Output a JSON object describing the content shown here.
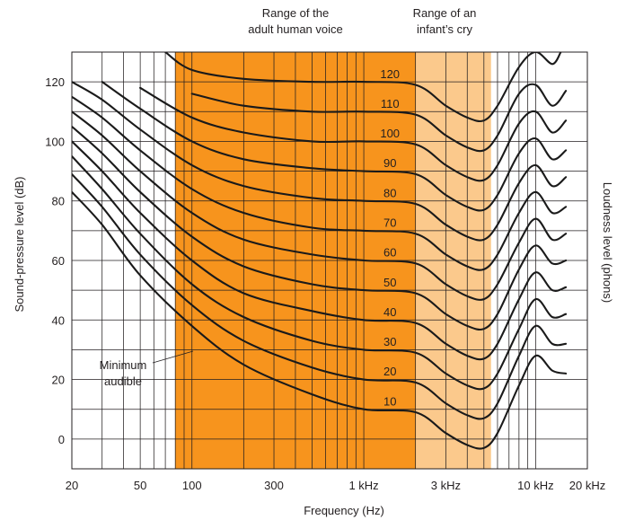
{
  "chart_data": {
    "type": "line",
    "title": "",
    "xlabel": "Frequency (Hz)",
    "ylabel": "Sound-pressure level (dB)",
    "y2label": "Loudness level (phons)",
    "x_scale": "log",
    "xlim": [
      20,
      20000
    ],
    "ylim": [
      -10,
      130
    ],
    "grid": true,
    "x_ticks": [
      {
        "value": 20,
        "label": "20"
      },
      {
        "value": 50,
        "label": "50"
      },
      {
        "value": 100,
        "label": "100"
      },
      {
        "value": 300,
        "label": "300"
      },
      {
        "value": 1000,
        "label": "1 kHz"
      },
      {
        "value": 3000,
        "label": "3 kHz"
      },
      {
        "value": 10000,
        "label": "10 kHz"
      },
      {
        "value": 20000,
        "label": "20 kHz"
      }
    ],
    "y_ticks": [
      0,
      20,
      40,
      60,
      80,
      100,
      120
    ],
    "regions": [
      {
        "name": "Range of the adult human voice",
        "line1": "Range of the",
        "line2": "adult human voice",
        "x_start": 80,
        "x_end": 2000,
        "color": "#f7941d"
      },
      {
        "name": "Range of an infant's cry",
        "line1": "Range of an",
        "line2": "infant’s cry",
        "x_start": 2000,
        "x_end": 5500,
        "color": "#fbc98c"
      }
    ],
    "annotations": [
      {
        "line1": "Minimum",
        "line2": "audible",
        "x": 60,
        "y": 22
      }
    ],
    "phon_labels": [
      "10",
      "20",
      "30",
      "40",
      "50",
      "60",
      "70",
      "80",
      "90",
      "100",
      "110",
      "120"
    ],
    "series": [
      {
        "name": "10",
        "x": [
          20,
          30,
          50,
          100,
          200,
          500,
          1000,
          2000,
          3000,
          4000,
          5000,
          6000,
          8000,
          10000,
          12500,
          15000
        ],
        "y": [
          83,
          72,
          55,
          38,
          25,
          15,
          10,
          9,
          2,
          -2,
          -3,
          2,
          18,
          28,
          23,
          22
        ]
      },
      {
        "name": "20",
        "x": [
          20,
          30,
          50,
          100,
          200,
          500,
          1000,
          2000,
          3000,
          4000,
          5000,
          6000,
          8000,
          10000,
          12500,
          15000
        ],
        "y": [
          89,
          78,
          62,
          45,
          33,
          24,
          20,
          19,
          12,
          8,
          7,
          12,
          28,
          38,
          32,
          32
        ]
      },
      {
        "name": "30",
        "x": [
          20,
          30,
          50,
          100,
          200,
          500,
          1000,
          2000,
          3000,
          4000,
          5000,
          6000,
          8000,
          10000,
          12500,
          15000
        ],
        "y": [
          95,
          84,
          69,
          52,
          41,
          33,
          30,
          29,
          22,
          18,
          17,
          22,
          37,
          47,
          41,
          42
        ]
      },
      {
        "name": "40",
        "x": [
          20,
          30,
          50,
          100,
          200,
          500,
          1000,
          2000,
          3000,
          4000,
          5000,
          6000,
          8000,
          10000,
          12500,
          15000
        ],
        "y": [
          100,
          90,
          76,
          60,
          49,
          43,
          40,
          39,
          32,
          28,
          27,
          32,
          47,
          56,
          50,
          51
        ]
      },
      {
        "name": "50",
        "x": [
          20,
          30,
          50,
          100,
          200,
          500,
          1000,
          2000,
          3000,
          4000,
          5000,
          6000,
          8000,
          10000,
          12500,
          15000
        ],
        "y": [
          105,
          96,
          83,
          68,
          58,
          52,
          50,
          49,
          42,
          38,
          37,
          42,
          57,
          65,
          59,
          60
        ]
      },
      {
        "name": "60",
        "x": [
          20,
          30,
          50,
          100,
          200,
          500,
          1000,
          2000,
          3000,
          4000,
          5000,
          6000,
          8000,
          10000,
          12500,
          15000
        ],
        "y": [
          110,
          102,
          90,
          76,
          67,
          62,
          60,
          59,
          52,
          48,
          47,
          52,
          66,
          74,
          67,
          69
        ]
      },
      {
        "name": "70",
        "x": [
          20,
          30,
          50,
          100,
          200,
          500,
          1000,
          2000,
          3000,
          4000,
          5000,
          6000,
          8000,
          10000,
          12500,
          15000
        ],
        "y": [
          115,
          108,
          97,
          84,
          76,
          71,
          70,
          69,
          62,
          58,
          57,
          62,
          76,
          83,
          76,
          78
        ]
      },
      {
        "name": "80",
        "x": [
          20,
          30,
          50,
          100,
          200,
          500,
          1000,
          2000,
          3000,
          4000,
          5000,
          6000,
          8000,
          10000,
          12500,
          15000
        ],
        "y": [
          120,
          114,
          104,
          92,
          85,
          81,
          80,
          79,
          72,
          68,
          67,
          72,
          86,
          92,
          85,
          88
        ]
      },
      {
        "name": "90",
        "x": [
          30,
          50,
          100,
          200,
          500,
          1000,
          2000,
          3000,
          4000,
          5000,
          6000,
          8000,
          10000,
          12500,
          15000
        ],
        "y": [
          120,
          111,
          100,
          94,
          91,
          90,
          89,
          82,
          78,
          77,
          82,
          96,
          101,
          94,
          97
        ]
      },
      {
        "name": "100",
        "x": [
          50,
          100,
          200,
          500,
          1000,
          2000,
          3000,
          4000,
          5000,
          6000,
          8000,
          10000,
          12500,
          15000
        ],
        "y": [
          118,
          108,
          103,
          100,
          100,
          99,
          92,
          88,
          87,
          92,
          106,
          110,
          103,
          107
        ]
      },
      {
        "name": "110",
        "x": [
          100,
          200,
          500,
          1000,
          2000,
          3000,
          4000,
          5000,
          6000,
          8000,
          10000,
          12500,
          15000
        ],
        "y": [
          116,
          112,
          110,
          110,
          109,
          102,
          98,
          97,
          102,
          116,
          119,
          112,
          117
        ]
      },
      {
        "name": "120",
        "x": [
          70,
          100,
          200,
          500,
          1000,
          2000,
          3000,
          4000,
          5000,
          6000,
          8000,
          10000,
          12500,
          14000
        ],
        "y": [
          130,
          124,
          121,
          120,
          120,
          119,
          112,
          108,
          107,
          112,
          125,
          130,
          126,
          130
        ]
      }
    ]
  }
}
